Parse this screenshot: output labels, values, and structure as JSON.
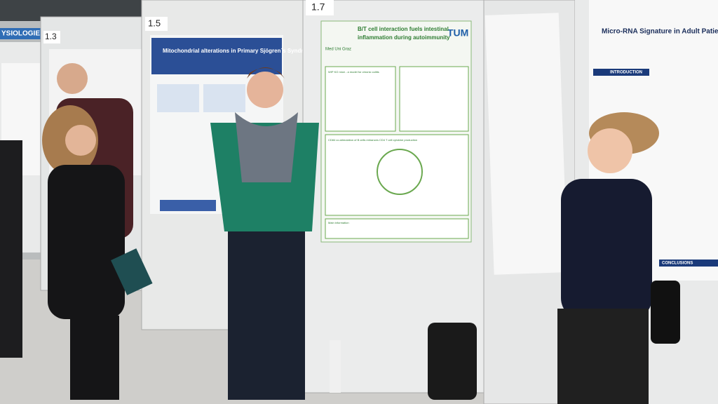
{
  "banner": "YSIOLOGIE",
  "signs": [
    "1.3",
    "1.5",
    "1.7"
  ],
  "posters": [
    {
      "title": "Mitochondrial alterations in Primary Sjögren´s Syndrome"
    },
    {
      "logo_left": "Med Uni Graz",
      "logo_right": "TUM",
      "title_lines": [
        "B/T cell interaction fuels intestinal",
        "inflammation during autoimmunity"
      ],
      "sections": [
        "WIP KO mice - a model for chronic colitis",
        "CD84 co-stimulation of B cells enhances CD4 T cell cytokine production",
        "Main information"
      ]
    },
    {
      "title": "Micro-RNA Signature in Adult Patients with",
      "sections": [
        "INTRODUCTION",
        "CONCLUSIONS"
      ]
    }
  ]
}
